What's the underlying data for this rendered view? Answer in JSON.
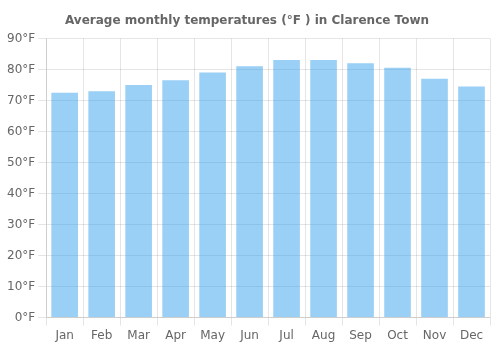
{
  "chart_data": {
    "type": "bar",
    "title": "Average monthly temperatures (°F ) in Clarence Town",
    "categories": [
      "Jan",
      "Feb",
      "Mar",
      "Apr",
      "May",
      "Jun",
      "Jul",
      "Aug",
      "Sep",
      "Oct",
      "Nov",
      "Dec"
    ],
    "values": [
      72.5,
      73.0,
      75.0,
      76.5,
      79.0,
      81.0,
      83.0,
      83.0,
      82.0,
      80.5,
      77.0,
      74.5
    ],
    "ylim": [
      0,
      90
    ],
    "yticks": [
      {
        "value": 0,
        "label": "0°F"
      },
      {
        "value": 10,
        "label": "10°F"
      },
      {
        "value": 20,
        "label": "20°F"
      },
      {
        "value": 30,
        "label": "30°F"
      },
      {
        "value": 40,
        "label": "40°F"
      },
      {
        "value": 50,
        "label": "50°F"
      },
      {
        "value": 60,
        "label": "60°F"
      },
      {
        "value": 70,
        "label": "70°F"
      },
      {
        "value": 80,
        "label": "80°F"
      },
      {
        "value": 90,
        "label": "90°F"
      }
    ],
    "grid": true
  }
}
